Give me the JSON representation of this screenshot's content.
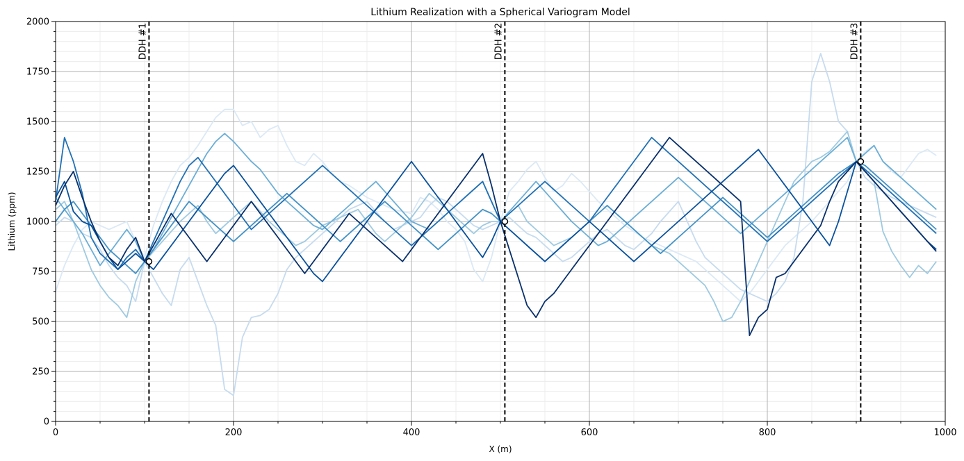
{
  "chart_data": {
    "type": "line",
    "title": "Lithium Realization with a Spherical Variogram Model",
    "xlabel": "X (m)",
    "ylabel": "Lithium (ppm)",
    "xlim": [
      0,
      1000
    ],
    "ylim": [
      0,
      2000
    ],
    "x_ticks": [
      0,
      200,
      400,
      600,
      800,
      1000
    ],
    "y_ticks": [
      0,
      250,
      500,
      750,
      1000,
      1250,
      1500,
      1750,
      2000
    ],
    "grid": true,
    "legend": "none",
    "colormap": "Blues",
    "x": [
      0,
      10,
      20,
      30,
      40,
      50,
      60,
      70,
      80,
      90,
      100,
      110,
      120,
      130,
      140,
      150,
      160,
      170,
      180,
      190,
      200,
      210,
      220,
      230,
      240,
      250,
      260,
      270,
      280,
      290,
      300,
      310,
      320,
      330,
      340,
      350,
      360,
      370,
      380,
      390,
      400,
      410,
      420,
      430,
      440,
      450,
      460,
      470,
      480,
      490,
      500,
      510,
      520,
      530,
      540,
      550,
      560,
      570,
      580,
      590,
      600,
      610,
      620,
      630,
      640,
      650,
      660,
      670,
      680,
      690,
      700,
      710,
      720,
      730,
      740,
      750,
      760,
      770,
      780,
      790,
      800,
      810,
      820,
      830,
      840,
      850,
      860,
      870,
      880,
      890,
      900,
      910,
      920,
      930,
      940,
      950,
      960,
      970,
      980,
      990
    ],
    "drillholes": [
      {
        "label": "DDH #1",
        "x": 105,
        "value": 800
      },
      {
        "label": "DDH #2",
        "x": 505,
        "value": 1000
      },
      {
        "label": "DDH #3",
        "x": 905,
        "value": 1300
      }
    ],
    "series": [
      {
        "color": "#dbe9f6",
        "values": [
          650,
          780,
          880,
          960,
          1000,
          980,
          960,
          980,
          1000,
          900,
          820,
          980,
          1100,
          1200,
          1280,
          1320,
          1380,
          1450,
          1520,
          1560,
          1560,
          1480,
          1500,
          1420,
          1460,
          1480,
          1380,
          1300,
          1280,
          1340,
          1300,
          1240,
          1200,
          1180,
          1150,
          1120,
          1100,
          1080,
          1060,
          1050,
          1040,
          1120,
          1100,
          1060,
          1000,
          960,
          900,
          760,
          700,
          820,
          1000,
          1150,
          1200,
          1260,
          1300,
          1220,
          1150,
          1180,
          1240,
          1200,
          1150,
          1100,
          1060,
          1020,
          980,
          950,
          920,
          900,
          880,
          860,
          840,
          820,
          800,
          760,
          720,
          680,
          640,
          600,
          640,
          700,
          760,
          820,
          880,
          920,
          960,
          1000,
          1050,
          1100,
          1150,
          1200,
          1300,
          1350,
          1380,
          1300,
          1250,
          1220,
          1280,
          1340,
          1360,
          1330
        ]
      },
      {
        "color": "#c6dbef",
        "values": [
          980,
          1020,
          1000,
          940,
          920,
          860,
          780,
          720,
          680,
          600,
          800,
          720,
          640,
          580,
          760,
          820,
          700,
          580,
          480,
          160,
          130,
          420,
          520,
          530,
          560,
          640,
          760,
          820,
          860,
          900,
          940,
          980,
          1020,
          1060,
          1080,
          1100,
          1050,
          1000,
          960,
          980,
          1000,
          1020,
          1080,
          1120,
          1100,
          1060,
          1020,
          980,
          960,
          980,
          1000,
          1020,
          980,
          940,
          920,
          880,
          840,
          800,
          820,
          860,
          900,
          940,
          960,
          920,
          880,
          860,
          900,
          940,
          1000,
          1050,
          1100,
          1000,
          900,
          820,
          780,
          740,
          700,
          660,
          640,
          620,
          600,
          640,
          700,
          820,
          1100,
          1700,
          1840,
          1700,
          1500,
          1450,
          1300,
          1220,
          1180,
          1150,
          1120,
          1100,
          1080,
          1060,
          1040,
          1020
        ]
      },
      {
        "color": "#9ecae1",
        "values": [
          1060,
          1100,
          1000,
          880,
          760,
          680,
          620,
          580,
          520,
          700,
          800,
          850,
          900,
          950,
          1000,
          1040,
          1080,
          1000,
          940,
          980,
          1020,
          1060,
          1100,
          1050,
          1000,
          960,
          920,
          880,
          900,
          940,
          980,
          1000,
          1020,
          1040,
          1060,
          1000,
          940,
          900,
          940,
          980,
          1020,
          1080,
          1140,
          1100,
          1060,
          1020,
          980,
          940,
          980,
          1000,
          1000,
          1040,
          1080,
          1000,
          960,
          920,
          880,
          900,
          920,
          960,
          1000,
          1040,
          1080,
          1040,
          1000,
          960,
          920,
          880,
          860,
          840,
          800,
          760,
          720,
          680,
          600,
          500,
          520,
          600,
          700,
          800,
          900,
          1000,
          1100,
          1200,
          1250,
          1300,
          1320,
          1350,
          1400,
          1450,
          1300,
          1250,
          1200,
          950,
          850,
          780,
          720,
          780,
          740,
          800
        ]
      },
      {
        "color": "#6baed6",
        "values": [
          1120,
          1060,
          1000,
          940,
          860,
          780,
          840,
          900,
          960,
          900,
          800,
          860,
          940,
          1020,
          1100,
          1180,
          1260,
          1340,
          1400,
          1440,
          1400,
          1350,
          1300,
          1260,
          1200,
          1140,
          1100,
          1060,
          1020,
          980,
          960,
          1000,
          1040,
          1080,
          1120,
          1160,
          1200,
          1150,
          1100,
          1050,
          1000,
          980,
          960,
          1000,
          1040,
          1080,
          1120,
          1160,
          1200,
          1100,
          1000,
          1050,
          1100,
          1150,
          1200,
          1150,
          1100,
          1050,
          1000,
          960,
          920,
          880,
          900,
          940,
          980,
          1020,
          1060,
          1100,
          1140,
          1180,
          1220,
          1180,
          1140,
          1100,
          1060,
          1020,
          980,
          940,
          980,
          1020,
          1060,
          1100,
          1140,
          1180,
          1220,
          1260,
          1300,
          1340,
          1380,
          1420,
          1300,
          1340,
          1380,
          1300,
          1260,
          1220,
          1180,
          1140,
          1100,
          1060
        ]
      },
      {
        "color": "#4292c6",
        "values": [
          1000,
          1060,
          1100,
          1040,
          980,
          920,
          860,
          820,
          780,
          740,
          800,
          860,
          920,
          980,
          1040,
          1100,
          1060,
          1020,
          980,
          940,
          900,
          940,
          980,
          1020,
          1060,
          1100,
          1140,
          1100,
          1060,
          1020,
          980,
          940,
          900,
          940,
          980,
          1020,
          1060,
          1100,
          1060,
          1020,
          980,
          940,
          900,
          860,
          900,
          940,
          980,
          1020,
          1060,
          1040,
          1000,
          960,
          920,
          880,
          840,
          800,
          840,
          880,
          920,
          960,
          1000,
          1040,
          1080,
          1040,
          1000,
          960,
          920,
          880,
          840,
          880,
          920,
          960,
          1000,
          1040,
          1080,
          1120,
          1080,
          1040,
          1000,
          960,
          920,
          960,
          1000,
          1040,
          1080,
          1120,
          1160,
          1200,
          1240,
          1270,
          1300,
          1280,
          1240,
          1200,
          1160,
          1120,
          1080,
          1040,
          1000,
          960
        ]
      },
      {
        "color": "#2171b5",
        "values": [
          1100,
          1420,
          1300,
          1140,
          920,
          840,
          800,
          760,
          820,
          860,
          800,
          900,
          1000,
          1100,
          1200,
          1280,
          1320,
          1260,
          1200,
          1140,
          1080,
          1020,
          960,
          1000,
          1040,
          1080,
          1120,
          1160,
          1200,
          1240,
          1280,
          1240,
          1200,
          1160,
          1120,
          1080,
          1040,
          1000,
          960,
          920,
          880,
          920,
          960,
          1000,
          1040,
          1080,
          1120,
          1160,
          1200,
          1100,
          1000,
          1040,
          1080,
          1120,
          1160,
          1200,
          1160,
          1120,
          1080,
          1040,
          1000,
          1060,
          1120,
          1180,
          1240,
          1300,
          1360,
          1420,
          1380,
          1340,
          1300,
          1260,
          1220,
          1180,
          1140,
          1100,
          1060,
          1020,
          980,
          940,
          900,
          940,
          980,
          1020,
          1060,
          1100,
          1140,
          1180,
          1220,
          1260,
          1300,
          1260,
          1220,
          1180,
          1140,
          1100,
          1060,
          1020,
          980,
          940
        ]
      },
      {
        "color": "#08519c",
        "values": [
          1120,
          1200,
          1050,
          1000,
          980,
          900,
          820,
          760,
          800,
          840,
          800,
          760,
          820,
          880,
          940,
          1000,
          1060,
          1120,
          1180,
          1240,
          1280,
          1220,
          1160,
          1100,
          1040,
          980,
          920,
          860,
          800,
          740,
          700,
          760,
          820,
          880,
          940,
          1000,
          1060,
          1120,
          1180,
          1240,
          1300,
          1240,
          1180,
          1120,
          1060,
          1000,
          940,
          880,
          820,
          900,
          1000,
          960,
          920,
          880,
          840,
          800,
          840,
          880,
          920,
          960,
          1000,
          960,
          920,
          880,
          840,
          800,
          840,
          880,
          920,
          960,
          1000,
          1040,
          1080,
          1120,
          1160,
          1200,
          1240,
          1280,
          1320,
          1360,
          1300,
          1240,
          1180,
          1120,
          1060,
          1000,
          940,
          880,
          1000,
          1150,
          1300,
          1250,
          1200,
          1150,
          1100,
          1050,
          1000,
          950,
          900,
          860
        ]
      },
      {
        "color": "#08306b",
        "values": [
          1080,
          1180,
          1250,
          1120,
          1000,
          900,
          820,
          780,
          860,
          920,
          800,
          880,
          960,
          1040,
          980,
          920,
          860,
          800,
          860,
          920,
          980,
          1040,
          1100,
          1040,
          980,
          920,
          860,
          800,
          740,
          800,
          860,
          920,
          980,
          1040,
          1000,
          960,
          920,
          880,
          840,
          800,
          860,
          920,
          980,
          1040,
          1100,
          1160,
          1220,
          1280,
          1340,
          1180,
          1000,
          860,
          720,
          580,
          520,
          600,
          640,
          700,
          760,
          820,
          880,
          940,
          1000,
          1060,
          1120,
          1180,
          1240,
          1300,
          1360,
          1420,
          1380,
          1340,
          1300,
          1260,
          1220,
          1180,
          1140,
          1100,
          430,
          520,
          560,
          720,
          740,
          800,
          860,
          920,
          980,
          1100,
          1200,
          1250,
          1300,
          1250,
          1200,
          1150,
          1100,
          1050,
          1000,
          950,
          900,
          850
        ]
      }
    ]
  }
}
